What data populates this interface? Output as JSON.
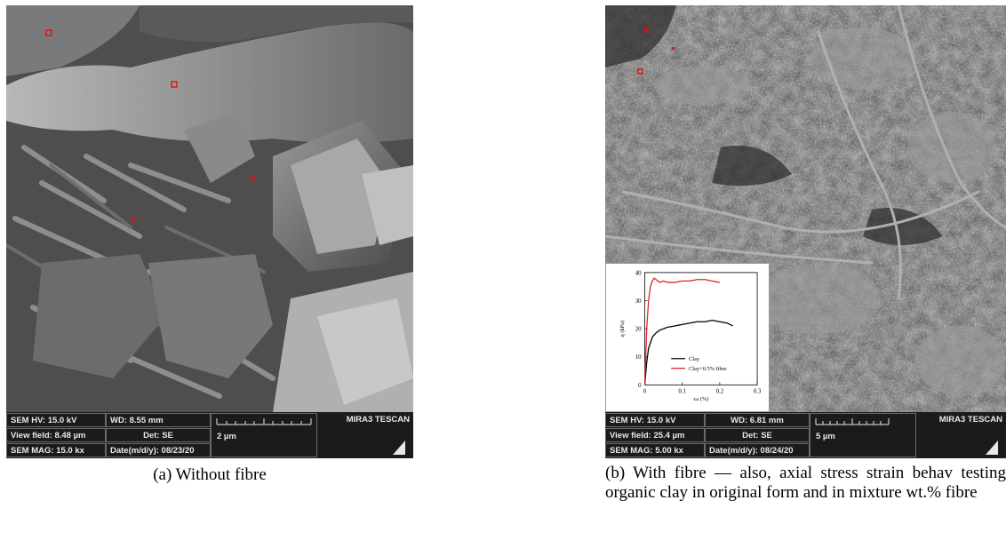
{
  "panel_a": {
    "caption": "(a) Without fibre",
    "info": {
      "hv": "SEM HV: 15.0 kV",
      "wd": "WD: 8.55 mm",
      "view_field": "View field: 8.48 µm",
      "det": "Det: SE",
      "mag": "SEM MAG: 15.0 kx",
      "date": "Date(m/d/y): 08/23/20",
      "scale": "2 µm",
      "brand": "MIRA3 TESCAN"
    }
  },
  "panel_b": {
    "caption": "(b) With fibre — also, axial stress strain behav testing organic clay in original form and in mixture wt.% fibre",
    "info": {
      "hv": "SEM HV: 15.0 kV",
      "wd": "WD: 6.81 mm",
      "view_field": "View field: 25.4 µm",
      "det": "Det: SE",
      "mag": "SEM MAG: 5.00 kx",
      "date": "Date(m/d/y): 08/24/20",
      "scale": "5 µm",
      "brand": "MIRA3 TESCAN"
    }
  },
  "chart_data": {
    "type": "line",
    "title": "",
    "xlabel": "εa (%)",
    "ylabel": "q (kPa)",
    "xlim": [
      0,
      0.3
    ],
    "ylim": [
      0,
      40
    ],
    "xticks": [
      "0",
      "0.1",
      "0.2",
      "0.3"
    ],
    "yticks": [
      "0",
      "10",
      "20",
      "30",
      "40"
    ],
    "legend_position": "bottom-center",
    "series": [
      {
        "name": "Clay",
        "color": "#000000",
        "x": [
          0,
          0.005,
          0.01,
          0.02,
          0.03,
          0.04,
          0.05,
          0.06,
          0.08,
          0.1,
          0.12,
          0.14,
          0.16,
          0.18,
          0.2,
          0.22,
          0.235
        ],
        "y": [
          0,
          8,
          13,
          17,
          18.5,
          19.5,
          20,
          20.5,
          21,
          21.5,
          22,
          22.5,
          22.5,
          23,
          22.5,
          22,
          21
        ]
      },
      {
        "name": "Clay+0.5% fibre",
        "color": "#e02020",
        "x": [
          0,
          0.005,
          0.01,
          0.015,
          0.02,
          0.025,
          0.03,
          0.04,
          0.05,
          0.06,
          0.08,
          0.1,
          0.12,
          0.14,
          0.16,
          0.18,
          0.2
        ],
        "y": [
          0,
          20,
          30,
          35,
          37,
          38,
          37.5,
          36.5,
          37,
          36.5,
          36.5,
          37,
          37,
          37.5,
          37.5,
          37,
          36.5
        ]
      }
    ]
  }
}
